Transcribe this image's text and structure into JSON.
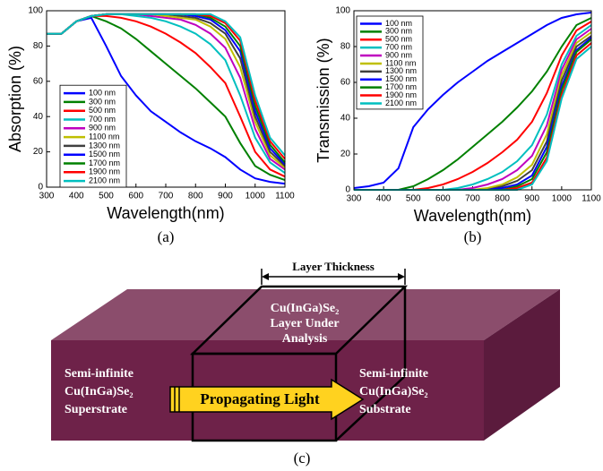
{
  "chart_data": [
    {
      "type": "line",
      "caption": "(a)",
      "xlabel": "Wavelength(nm)",
      "ylabel": "Absorption (%)",
      "x": [
        300,
        350,
        400,
        450,
        500,
        550,
        600,
        650,
        700,
        750,
        800,
        850,
        900,
        950,
        1000,
        1050,
        1100
      ],
      "xlim": [
        300,
        1100
      ],
      "xticks": [
        300,
        400,
        500,
        600,
        700,
        800,
        900,
        1000,
        1100
      ],
      "ylim": [
        0,
        100
      ],
      "yticks": [
        0,
        20,
        40,
        60,
        80,
        100
      ],
      "legend": "lower left",
      "series": [
        {
          "name": "100 nm",
          "color": "#0000ff",
          "values": [
            87,
            87,
            94,
            96,
            80,
            63,
            52,
            43,
            37,
            31,
            26,
            22,
            17,
            10,
            5,
            3,
            2
          ]
        },
        {
          "name": "300 nm",
          "color": "#008000",
          "values": [
            87,
            87,
            94,
            97,
            94,
            90,
            84,
            77,
            70,
            63,
            56,
            48,
            40,
            25,
            12,
            7,
            4
          ]
        },
        {
          "name": "500 nm",
          "color": "#ff0000",
          "values": [
            87,
            87,
            94,
            97,
            97,
            96,
            94,
            91,
            87,
            82,
            76,
            68,
            59,
            40,
            20,
            10,
            6
          ]
        },
        {
          "name": "700 nm",
          "color": "#00bfbf",
          "values": [
            87,
            87,
            94,
            97,
            98,
            98,
            97,
            96,
            94,
            91,
            87,
            81,
            72,
            52,
            28,
            14,
            8
          ]
        },
        {
          "name": "900 nm",
          "color": "#bf00bf",
          "values": [
            87,
            87,
            94,
            97,
            98,
            98,
            98,
            97,
            96,
            95,
            92,
            87,
            79,
            62,
            33,
            16,
            10
          ]
        },
        {
          "name": "1100 nm",
          "color": "#bfbf00",
          "values": [
            87,
            87,
            94,
            97,
            98,
            98,
            98,
            98,
            97,
            96,
            95,
            91,
            84,
            68,
            37,
            18,
            11
          ]
        },
        {
          "name": "1300 nm",
          "color": "#404040",
          "values": [
            87,
            87,
            94,
            97,
            98,
            98,
            98,
            98,
            98,
            97,
            96,
            93,
            87,
            73,
            40,
            20,
            12
          ]
        },
        {
          "name": "1500 nm",
          "color": "#0000ff",
          "values": [
            87,
            87,
            94,
            97,
            98,
            98,
            98,
            98,
            98,
            98,
            97,
            95,
            89,
            77,
            43,
            22,
            13
          ]
        },
        {
          "name": "1700 nm",
          "color": "#008000",
          "values": [
            87,
            87,
            94,
            97,
            98,
            98,
            98,
            98,
            98,
            98,
            98,
            96,
            91,
            80,
            46,
            24,
            14
          ]
        },
        {
          "name": "1900 nm",
          "color": "#ff0000",
          "values": [
            87,
            87,
            94,
            97,
            98,
            98,
            98,
            98,
            98,
            98,
            98,
            97,
            93,
            83,
            49,
            26,
            16
          ]
        },
        {
          "name": "2100 nm",
          "color": "#00bfbf",
          "values": [
            87,
            87,
            94,
            97,
            98,
            98,
            98,
            98,
            98,
            98,
            98,
            98,
            94,
            85,
            52,
            28,
            18
          ]
        }
      ]
    },
    {
      "type": "line",
      "caption": "(b)",
      "xlabel": "Wavelength(nm)",
      "ylabel": "Transmission (%)",
      "x": [
        300,
        350,
        400,
        450,
        500,
        550,
        600,
        650,
        700,
        750,
        800,
        850,
        900,
        950,
        1000,
        1050,
        1100
      ],
      "xlim": [
        300,
        1100
      ],
      "xticks": [
        300,
        400,
        500,
        600,
        700,
        800,
        900,
        1000,
        1100
      ],
      "ylim": [
        0,
        100
      ],
      "yticks": [
        0,
        20,
        40,
        60,
        80,
        100
      ],
      "legend": "upper left",
      "series": [
        {
          "name": "100 nm",
          "color": "#0000ff",
          "values": [
            1,
            2,
            4,
            12,
            35,
            45,
            53,
            60,
            66,
            72,
            77,
            82,
            87,
            92,
            96,
            98,
            99
          ]
        },
        {
          "name": "300 nm",
          "color": "#008000",
          "values": [
            0,
            0,
            0,
            0,
            2,
            6,
            11,
            17,
            24,
            31,
            38,
            46,
            55,
            66,
            80,
            92,
            96
          ]
        },
        {
          "name": "500 nm",
          "color": "#ff0000",
          "values": [
            0,
            0,
            0,
            0,
            0,
            1,
            3,
            6,
            10,
            15,
            21,
            28,
            38,
            54,
            75,
            89,
            94
          ]
        },
        {
          "name": "700 nm",
          "color": "#00bfbf",
          "values": [
            0,
            0,
            0,
            0,
            0,
            0,
            0,
            1,
            3,
            6,
            10,
            16,
            25,
            42,
            70,
            86,
            92
          ]
        },
        {
          "name": "900 nm",
          "color": "#bf00bf",
          "values": [
            0,
            0,
            0,
            0,
            0,
            0,
            0,
            0,
            1,
            3,
            6,
            11,
            19,
            36,
            67,
            84,
            90
          ]
        },
        {
          "name": "1100 nm",
          "color": "#bfbf00",
          "values": [
            0,
            0,
            0,
            0,
            0,
            0,
            0,
            0,
            0,
            1,
            3,
            7,
            14,
            31,
            64,
            82,
            88
          ]
        },
        {
          "name": "1300 nm",
          "color": "#404040",
          "values": [
            0,
            0,
            0,
            0,
            0,
            0,
            0,
            0,
            0,
            0,
            2,
            5,
            11,
            27,
            61,
            80,
            86
          ]
        },
        {
          "name": "1500 nm",
          "color": "#0000ff",
          "values": [
            0,
            0,
            0,
            0,
            0,
            0,
            0,
            0,
            0,
            0,
            1,
            3,
            8,
            24,
            58,
            78,
            85
          ]
        },
        {
          "name": "1700 nm",
          "color": "#008000",
          "values": [
            0,
            0,
            0,
            0,
            0,
            0,
            0,
            0,
            0,
            0,
            0,
            2,
            6,
            21,
            56,
            77,
            84
          ]
        },
        {
          "name": "1900 nm",
          "color": "#ff0000",
          "values": [
            0,
            0,
            0,
            0,
            0,
            0,
            0,
            0,
            0,
            0,
            0,
            1,
            4,
            18,
            53,
            75,
            82
          ]
        },
        {
          "name": "2100 nm",
          "color": "#00bfbf",
          "values": [
            0,
            0,
            0,
            0,
            0,
            0,
            0,
            0,
            0,
            0,
            0,
            0,
            3,
            16,
            51,
            73,
            80
          ]
        }
      ]
    }
  ],
  "diagram": {
    "layer_thickness": "Layer Thickness",
    "layer": [
      "Cu(InGa)Se₂",
      "Layer Under",
      "Analysis"
    ],
    "left": [
      "Semi-infinite",
      "Cu(InGa)Se₂",
      "Superstrate"
    ],
    "right": [
      "Semi-infinite",
      "Cu(InGa)Se₂",
      "Substrate"
    ],
    "arrow": "Propagating Light",
    "caption": "(c)"
  }
}
